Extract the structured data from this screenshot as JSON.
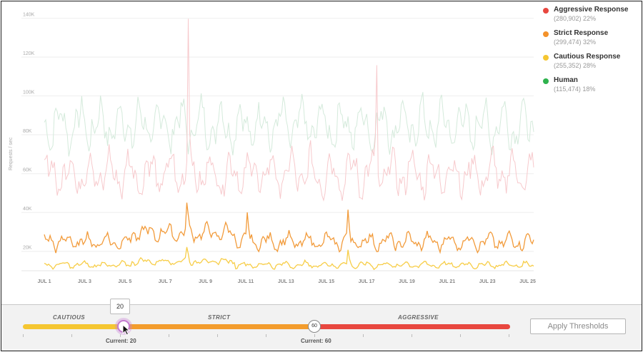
{
  "chart_data": {
    "type": "line",
    "ylabel": "Requests / sec",
    "y_ticks": [
      "20K",
      "40K",
      "60K",
      "80K",
      "100K",
      "120K",
      "140K"
    ],
    "ylim": [
      10000,
      145000
    ],
    "x_ticks": [
      "JUL 1",
      "JUL 3",
      "JUL 5",
      "JUL 7",
      "JUL 9",
      "JUL 11",
      "JUL 13",
      "JUL 15",
      "JUL 17",
      "JUL 19",
      "JUL 21",
      "JUL 23",
      "JUL 25"
    ],
    "xlim": [
      1,
      25.3
    ],
    "grid": true,
    "legend_position": "right",
    "series": [
      {
        "name": "Aggressive Response",
        "detail": "(280,902) 22%",
        "color": "#e8473f",
        "line_color": "#f7c9cc",
        "base": 60000,
        "amp": 14000,
        "spikes": [
          [
            8.15,
            140000
          ],
          [
            17.5,
            118000
          ]
        ]
      },
      {
        "name": "Strict Response",
        "detail": "(299,474) 32%",
        "color": "#f3922b",
        "line_color": "#f29b3b",
        "base": 25000,
        "amp": 5000,
        "spikes": [
          [
            8.1,
            48000
          ],
          [
            11.1,
            43000
          ],
          [
            16.1,
            44000
          ]
        ]
      },
      {
        "name": "Cautious Response",
        "detail": "(255,352) 28%",
        "color": "#f5c631",
        "line_color": "#f7cd47",
        "base": 13000,
        "amp": 2000,
        "spikes": [
          [
            8.1,
            24000
          ],
          [
            16.1,
            22000
          ]
        ]
      },
      {
        "name": "Human",
        "detail": "(115,474) 18%",
        "color": "#2eb24d",
        "line_color": "#d4eadb",
        "base": 85000,
        "amp": 15000,
        "spikes": []
      }
    ]
  },
  "thresholds": {
    "zones": [
      "CAUTIOUS",
      "STRICT",
      "AGGRESSIVE"
    ],
    "cautious_value": 20,
    "strict_value": 60,
    "tooltip_value": "20",
    "handle_strict_label": "60",
    "current_cautious": "Current: 20",
    "current_strict": "Current: 60",
    "colors": {
      "cautious": "#f5c631",
      "strict": "#f39c2c",
      "aggressive": "#e8473f"
    }
  },
  "apply_button": "Apply Thresholds"
}
